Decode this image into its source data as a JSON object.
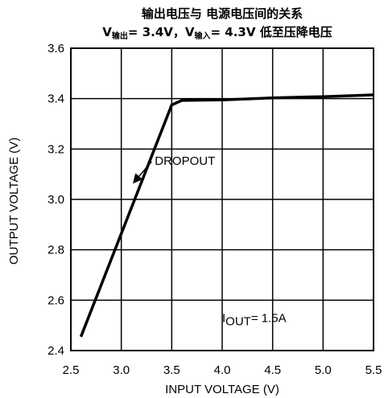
{
  "chart_data": {
    "type": "line",
    "title": "输出电压与 电源电压间的关系",
    "subtitle": {
      "v1": "V",
      "v1_sub": "输出",
      "v1_value": "= 3.4V，",
      "v2": "V",
      "v2_sub": "输入",
      "v2_value": "= 4.3V 低至压降电压"
    },
    "xlabel": "INPUT VOLTAGE (V)",
    "ylabel": "OUTPUT VOLTAGE (V)",
    "xlim": [
      2.5,
      5.5
    ],
    "ylim": [
      2.4,
      3.6
    ],
    "xticks": [
      "2.5",
      "3.0",
      "3.5",
      "4.0",
      "4.5",
      "5.0",
      "5.5"
    ],
    "yticks": [
      "2.4",
      "2.6",
      "2.8",
      "3.0",
      "3.2",
      "3.4",
      "3.6"
    ],
    "xtick_values": [
      2.5,
      3.0,
      3.5,
      4.0,
      4.5,
      5.0,
      5.5
    ],
    "ytick_values": [
      2.4,
      2.6,
      2.8,
      3.0,
      3.2,
      3.4,
      3.6
    ],
    "grid": true,
    "series": [
      {
        "x": [
          2.6,
          3.5,
          3.6,
          4.0,
          4.5,
          5.0,
          5.5
        ],
        "y": [
          2.455,
          3.375,
          3.393,
          3.395,
          3.403,
          3.408,
          3.415
        ]
      }
    ],
    "annotations": [
      {
        "text": "DROPOUT",
        "arrow_from": [
          3.3,
          3.15
        ],
        "arrow_to": [
          3.13,
          3.07
        ]
      },
      {
        "text_main": "I",
        "text_sub": "OUT",
        "text_rest": "= 1.5A",
        "x": 4.0,
        "y": 2.53
      }
    ]
  }
}
